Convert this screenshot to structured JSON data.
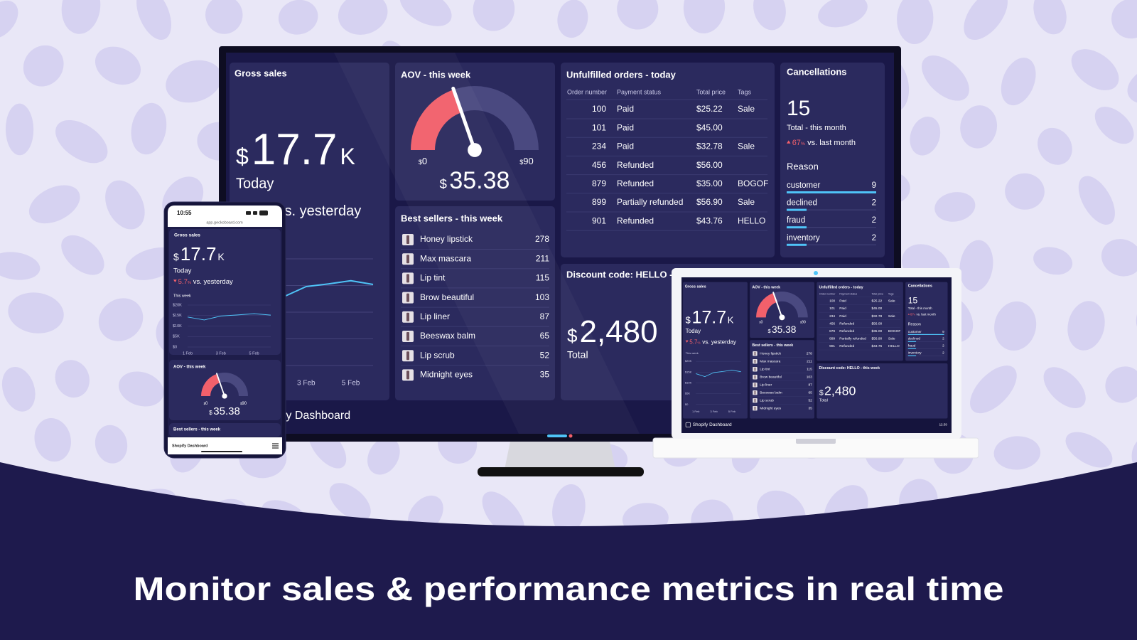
{
  "headline": "Monitor sales & performance metrics in real time",
  "phone": {
    "time": "10:55",
    "url": "app.geckoboard.com"
  },
  "dashboard": {
    "footer": "Shopify Dashboard",
    "time": "12:39",
    "gross_sales": {
      "title": "Gross sales",
      "currency": "$",
      "value": "17.7",
      "unit": "K",
      "period": "Today",
      "change": "5.7",
      "change_unit": "%",
      "comparison": "vs. yesterday",
      "change_color": "#f2606b",
      "chart": {
        "type": "line",
        "title": "This week",
        "categories": [
          "1 Feb",
          null,
          "3 Feb",
          null,
          "5 Feb",
          null
        ],
        "values": [
          14300,
          12900,
          14800,
          15300,
          15900,
          15200
        ],
        "color": "#4fc3f7",
        "ylim": [
          0,
          20000
        ],
        "yticks": [
          {
            "value": 0,
            "label": "$0"
          },
          {
            "value": 5000,
            "label": "$5K"
          },
          {
            "value": 10000,
            "label": "$10K"
          },
          {
            "value": 15000,
            "label": "$15K"
          },
          {
            "value": 20000,
            "label": "$20K"
          }
        ]
      }
    },
    "aov": {
      "title": "AOV - this week",
      "currency": "$",
      "value": 35.38,
      "range": [
        0,
        90
      ],
      "fill_color": "#f2606b",
      "track_color": "#4a4980"
    },
    "best_sellers": {
      "title": "Best sellers - this week",
      "items": [
        {
          "name": "Honey lipstick",
          "value": 278
        },
        {
          "name": "Max mascara",
          "value": 211
        },
        {
          "name": "Lip tint",
          "value": 115
        },
        {
          "name": "Brow beautiful",
          "value": 103
        },
        {
          "name": "Lip liner",
          "value": 87
        },
        {
          "name": "Beeswax balm",
          "value": 65
        },
        {
          "name": "Lip scrub",
          "value": 52
        },
        {
          "name": "Midnight eyes",
          "value": 35
        }
      ]
    },
    "orders": {
      "title": "Unfulfilled orders - today",
      "columns": [
        "Order number",
        "Payment status",
        "Total price",
        "Tags"
      ],
      "rows": [
        [
          "100",
          "Paid",
          "$25.22",
          "Sale"
        ],
        [
          "101",
          "Paid",
          "$45.00",
          null
        ],
        [
          "234",
          "Paid",
          "$32.78",
          "Sale"
        ],
        [
          "456",
          "Refunded",
          "$56.00",
          null
        ],
        [
          "879",
          "Refunded",
          "$35.00",
          "BOGOF"
        ],
        [
          "899",
          "Partially refunded",
          "$56.90",
          "Sale"
        ],
        [
          "901",
          "Refunded",
          "$43.76",
          "HELLO"
        ]
      ]
    },
    "cancellations": {
      "title": "Cancellations",
      "value": 15,
      "label": "Total - this month",
      "change": "67",
      "change_unit": "%",
      "comparison": "vs. last month",
      "change_color": "#f2606b",
      "reason_title": "Reason",
      "bar_color": "#4fc3f7",
      "reasons": [
        {
          "name": "customer",
          "value": 9
        },
        {
          "name": "declined",
          "value": 2
        },
        {
          "name": "fraud",
          "value": 2
        },
        {
          "name": "inventory",
          "value": 2
        }
      ]
    },
    "discount": {
      "title": "Discount code: HELLO - this week",
      "currency": "$",
      "value": "2,480",
      "label": "Total"
    }
  }
}
